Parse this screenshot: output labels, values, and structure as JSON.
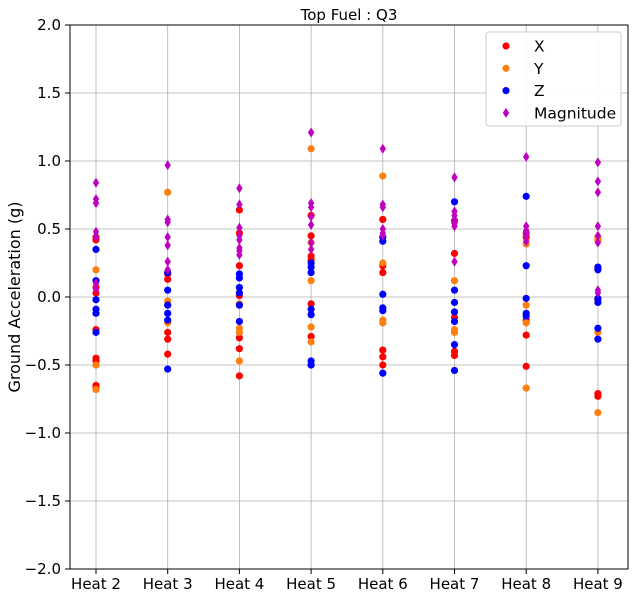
{
  "chart_data": {
    "type": "scatter",
    "title": "Top Fuel  : Q3",
    "xlabel": "",
    "ylabel": "Ground Acceleration (g)",
    "categories": [
      "Heat 2",
      "Heat 3",
      "Heat 4",
      "Heat 5",
      "Heat 6",
      "Heat 7",
      "Heat 8",
      "Heat 9"
    ],
    "ylim": [
      -2.0,
      2.0
    ],
    "yticks": [
      "−2.0",
      "−1.5",
      "−1.0",
      "−0.5",
      "0.0",
      "0.5",
      "1.0",
      "1.5",
      "2.0"
    ],
    "ytick_values": [
      -2.0,
      -1.5,
      -1.0,
      -0.5,
      0.0,
      0.5,
      1.0,
      1.5,
      2.0
    ],
    "grid": true,
    "legend_position": "top-right",
    "series": [
      {
        "name": "X",
        "color": "#ff0000",
        "marker": "circle",
        "points": [
          [
            "Heat 2",
            0.44
          ],
          [
            "Heat 2",
            0.42
          ],
          [
            "Heat 2",
            0.07
          ],
          [
            "Heat 2",
            0.03
          ],
          [
            "Heat 2",
            -0.24
          ],
          [
            "Heat 2",
            -0.45
          ],
          [
            "Heat 2",
            -0.47
          ],
          [
            "Heat 2",
            -0.65
          ],
          [
            "Heat 2",
            -0.67
          ],
          [
            "Heat 3",
            0.17
          ],
          [
            "Heat 3",
            0.13
          ],
          [
            "Heat 3",
            -0.26
          ],
          [
            "Heat 3",
            -0.31
          ],
          [
            "Heat 3",
            -0.42
          ],
          [
            "Heat 4",
            0.64
          ],
          [
            "Heat 4",
            0.47
          ],
          [
            "Heat 4",
            0.23
          ],
          [
            "Heat 4",
            0.01
          ],
          [
            "Heat 4",
            -0.3
          ],
          [
            "Heat 4",
            -0.38
          ],
          [
            "Heat 4",
            -0.58
          ],
          [
            "Heat 5",
            0.6
          ],
          [
            "Heat 5",
            0.45
          ],
          [
            "Heat 5",
            0.3
          ],
          [
            "Heat 5",
            0.27
          ],
          [
            "Heat 5",
            -0.05
          ],
          [
            "Heat 5",
            -0.29
          ],
          [
            "Heat 5",
            -0.5
          ],
          [
            "Heat 6",
            0.57
          ],
          [
            "Heat 6",
            0.23
          ],
          [
            "Heat 6",
            0.18
          ],
          [
            "Heat 6",
            -0.39
          ],
          [
            "Heat 6",
            -0.44
          ],
          [
            "Heat 6",
            -0.5
          ],
          [
            "Heat 7",
            0.56
          ],
          [
            "Heat 7",
            0.32
          ],
          [
            "Heat 7",
            -0.15
          ],
          [
            "Heat 7",
            -0.4
          ],
          [
            "Heat 7",
            -0.43
          ],
          [
            "Heat 8",
            0.47
          ],
          [
            "Heat 8",
            0.44
          ],
          [
            "Heat 8",
            -0.17
          ],
          [
            "Heat 8",
            -0.28
          ],
          [
            "Heat 8",
            -0.51
          ],
          [
            "Heat 9",
            0.42
          ],
          [
            "Heat 9",
            0.21
          ],
          [
            "Heat 9",
            -0.02
          ],
          [
            "Heat 9",
            -0.71
          ],
          [
            "Heat 9",
            -0.73
          ]
        ]
      },
      {
        "name": "Y",
        "color": "#ff7f0e",
        "marker": "circle",
        "points": [
          [
            "Heat 2",
            0.2
          ],
          [
            "Heat 2",
            -0.5
          ],
          [
            "Heat 2",
            -0.68
          ],
          [
            "Heat 3",
            0.77
          ],
          [
            "Heat 3",
            -0.03
          ],
          [
            "Heat 3",
            -0.19
          ],
          [
            "Heat 4",
            -0.05
          ],
          [
            "Heat 4",
            -0.23
          ],
          [
            "Heat 4",
            -0.26
          ],
          [
            "Heat 4",
            -0.47
          ],
          [
            "Heat 5",
            1.09
          ],
          [
            "Heat 5",
            0.4
          ],
          [
            "Heat 5",
            0.12
          ],
          [
            "Heat 5",
            -0.22
          ],
          [
            "Heat 5",
            -0.33
          ],
          [
            "Heat 6",
            0.89
          ],
          [
            "Heat 6",
            0.25
          ],
          [
            "Heat 6",
            -0.17
          ],
          [
            "Heat 6",
            -0.19
          ],
          [
            "Heat 7",
            0.12
          ],
          [
            "Heat 7",
            -0.24
          ],
          [
            "Heat 7",
            -0.26
          ],
          [
            "Heat 8",
            0.39
          ],
          [
            "Heat 8",
            -0.06
          ],
          [
            "Heat 8",
            -0.19
          ],
          [
            "Heat 8",
            -0.67
          ],
          [
            "Heat 9",
            0.44
          ],
          [
            "Heat 9",
            0.42
          ],
          [
            "Heat 9",
            -0.26
          ],
          [
            "Heat 9",
            -0.85
          ]
        ]
      },
      {
        "name": "Z",
        "color": "#0000ff",
        "marker": "circle",
        "points": [
          [
            "Heat 2",
            0.35
          ],
          [
            "Heat 2",
            0.12
          ],
          [
            "Heat 2",
            -0.02
          ],
          [
            "Heat 2",
            -0.09
          ],
          [
            "Heat 2",
            -0.12
          ],
          [
            "Heat 2",
            -0.26
          ],
          [
            "Heat 3",
            0.18
          ],
          [
            "Heat 3",
            0.05
          ],
          [
            "Heat 3",
            -0.06
          ],
          [
            "Heat 3",
            -0.12
          ],
          [
            "Heat 3",
            -0.17
          ],
          [
            "Heat 3",
            -0.53
          ],
          [
            "Heat 4",
            0.17
          ],
          [
            "Heat 4",
            0.14
          ],
          [
            "Heat 4",
            0.07
          ],
          [
            "Heat 4",
            0.03
          ],
          [
            "Heat 4",
            -0.06
          ],
          [
            "Heat 4",
            -0.18
          ],
          [
            "Heat 5",
            0.25
          ],
          [
            "Heat 5",
            0.22
          ],
          [
            "Heat 5",
            0.18
          ],
          [
            "Heat 5",
            -0.09
          ],
          [
            "Heat 5",
            -0.13
          ],
          [
            "Heat 5",
            -0.47
          ],
          [
            "Heat 5",
            -0.5
          ],
          [
            "Heat 6",
            0.44
          ],
          [
            "Heat 6",
            0.41
          ],
          [
            "Heat 6",
            0.02
          ],
          [
            "Heat 6",
            -0.08
          ],
          [
            "Heat 6",
            -0.1
          ],
          [
            "Heat 6",
            -0.56
          ],
          [
            "Heat 7",
            0.7
          ],
          [
            "Heat 7",
            0.05
          ],
          [
            "Heat 7",
            -0.04
          ],
          [
            "Heat 7",
            -0.11
          ],
          [
            "Heat 7",
            -0.18
          ],
          [
            "Heat 7",
            -0.35
          ],
          [
            "Heat 7",
            -0.54
          ],
          [
            "Heat 8",
            0.74
          ],
          [
            "Heat 8",
            0.23
          ],
          [
            "Heat 8",
            -0.01
          ],
          [
            "Heat 8",
            -0.12
          ],
          [
            "Heat 8",
            -0.14
          ],
          [
            "Heat 9",
            0.22
          ],
          [
            "Heat 9",
            0.2
          ],
          [
            "Heat 9",
            -0.01
          ],
          [
            "Heat 9",
            -0.04
          ],
          [
            "Heat 9",
            -0.23
          ],
          [
            "Heat 9",
            -0.31
          ]
        ]
      },
      {
        "name": "Magnitude",
        "color": "#bf00bf",
        "marker": "diamond",
        "points": [
          [
            "Heat 2",
            0.84
          ],
          [
            "Heat 2",
            0.72
          ],
          [
            "Heat 2",
            0.69
          ],
          [
            "Heat 2",
            0.48
          ],
          [
            "Heat 2",
            0.44
          ],
          [
            "Heat 2",
            0.1
          ],
          [
            "Heat 2",
            0.06
          ],
          [
            "Heat 3",
            0.97
          ],
          [
            "Heat 3",
            0.57
          ],
          [
            "Heat 3",
            0.55
          ],
          [
            "Heat 3",
            0.44
          ],
          [
            "Heat 3",
            0.38
          ],
          [
            "Heat 3",
            0.26
          ],
          [
            "Heat 3",
            0.2
          ],
          [
            "Heat 4",
            0.8
          ],
          [
            "Heat 4",
            0.68
          ],
          [
            "Heat 4",
            0.51
          ],
          [
            "Heat 4",
            0.45
          ],
          [
            "Heat 4",
            0.42
          ],
          [
            "Heat 4",
            0.36
          ],
          [
            "Heat 4",
            0.34
          ],
          [
            "Heat 4",
            0.31
          ],
          [
            "Heat 5",
            1.21
          ],
          [
            "Heat 5",
            0.69
          ],
          [
            "Heat 5",
            0.66
          ],
          [
            "Heat 5",
            0.59
          ],
          [
            "Heat 5",
            0.53
          ],
          [
            "Heat 5",
            0.4
          ],
          [
            "Heat 5",
            0.35
          ],
          [
            "Heat 6",
            1.09
          ],
          [
            "Heat 6",
            0.68
          ],
          [
            "Heat 6",
            0.66
          ],
          [
            "Heat 6",
            0.5
          ],
          [
            "Heat 6",
            0.47
          ],
          [
            "Heat 6",
            0.45
          ],
          [
            "Heat 7",
            0.88
          ],
          [
            "Heat 7",
            0.63
          ],
          [
            "Heat 7",
            0.6
          ],
          [
            "Heat 7",
            0.57
          ],
          [
            "Heat 7",
            0.54
          ],
          [
            "Heat 7",
            0.52
          ],
          [
            "Heat 7",
            0.26
          ],
          [
            "Heat 8",
            1.03
          ],
          [
            "Heat 8",
            0.52
          ],
          [
            "Heat 8",
            0.49
          ],
          [
            "Heat 8",
            0.47
          ],
          [
            "Heat 8",
            0.45
          ],
          [
            "Heat 8",
            0.41
          ],
          [
            "Heat 9",
            0.99
          ],
          [
            "Heat 9",
            0.85
          ],
          [
            "Heat 9",
            0.77
          ],
          [
            "Heat 9",
            0.52
          ],
          [
            "Heat 9",
            0.45
          ],
          [
            "Heat 9",
            0.4
          ],
          [
            "Heat 9",
            0.05
          ],
          [
            "Heat 9",
            0.03
          ]
        ]
      }
    ]
  }
}
